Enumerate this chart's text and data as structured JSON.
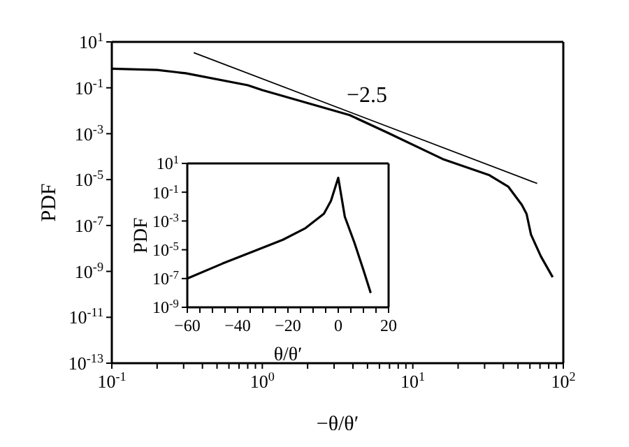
{
  "chart_data": [
    {
      "type": "line",
      "xlabel": "−θ/θ′",
      "ylabel": "PDF",
      "log": "xy",
      "marker": "none",
      "line_style": "solid",
      "xlim": [
        0.1,
        100
      ],
      "ylim": [
        1e-13,
        10
      ],
      "xticks": [
        {
          "value": 0.1,
          "label": "10$^{-1}$"
        },
        {
          "value": 0.2,
          "label": null
        },
        {
          "value": 0.3,
          "label": null
        },
        {
          "value": 0.4,
          "label": null
        },
        {
          "value": 0.5,
          "label": null
        },
        {
          "value": 0.6,
          "label": null
        },
        {
          "value": 0.7,
          "label": null
        },
        {
          "value": 0.8,
          "label": null
        },
        {
          "value": 0.9,
          "label": null
        },
        {
          "value": 1,
          "label": "10$^{0}$"
        },
        {
          "value": 2,
          "label": null
        },
        {
          "value": 3,
          "label": null
        },
        {
          "value": 4,
          "label": null
        },
        {
          "value": 5,
          "label": null
        },
        {
          "value": 6,
          "label": null
        },
        {
          "value": 7,
          "label": null
        },
        {
          "value": 8,
          "label": null
        },
        {
          "value": 9,
          "label": null
        },
        {
          "value": 10,
          "label": "10$^{1}$"
        },
        {
          "value": 20,
          "label": null
        },
        {
          "value": 30,
          "label": null
        },
        {
          "value": 40,
          "label": null
        },
        {
          "value": 50,
          "label": null
        },
        {
          "value": 60,
          "label": null
        },
        {
          "value": 70,
          "label": null
        },
        {
          "value": 80,
          "label": null
        },
        {
          "value": 90,
          "label": null
        },
        {
          "value": 100,
          "label": "10$^{2}$"
        }
      ],
      "yticks": [
        {
          "value": 1e-13,
          "label": "10$^{-13}$"
        },
        {
          "value": 1e-11,
          "label": "10$^{-11}$"
        },
        {
          "value": 1e-09,
          "label": "10$^{-9}$"
        },
        {
          "value": 1e-07,
          "label": "10$^{-7}$"
        },
        {
          "value": 1e-05,
          "label": "10$^{-5}$"
        },
        {
          "value": 0.001,
          "label": "10$^{-3}$"
        },
        {
          "value": 0.1,
          "label": "10$^{-1}$"
        },
        {
          "value": 10,
          "label": "10$^{1}$"
        }
      ],
      "series": [
        {
          "color": "#000000",
          "x": [
            0.1,
            0.2,
            0.31,
            0.8,
            1.0,
            3.8,
            6.8,
            15.8,
            32,
            43,
            53,
            57,
            61,
            71,
            85
          ],
          "values": [
            0.68,
            0.6,
            0.43,
            0.13,
            0.079,
            0.0065,
            0.0011,
            7.9e-05,
            1.6e-05,
            5e-06,
            8e-07,
            3.2e-07,
            4e-08,
            4.5e-09,
            5.6e-10
          ]
        },
        {
          "color": "#000000",
          "x": [
            0.35,
            67
          ],
          "values": [
            3.4,
            6.8e-06
          ]
        }
      ],
      "annotations": [
        "−2.5"
      ]
    },
    {
      "type": "line",
      "xlabel": "θ/θ′",
      "ylabel": "PDF",
      "log": "y",
      "marker": "none",
      "line_style": "solid",
      "xlim": [
        -60,
        20
      ],
      "ylim": [
        1e-09,
        10
      ],
      "xticks": [
        -60,
        {
          "value": -55,
          "label": null
        },
        {
          "value": -50,
          "label": null
        },
        {
          "value": -45,
          "label": null
        },
        -40,
        {
          "value": -35,
          "label": null
        },
        {
          "value": -30,
          "label": null
        },
        {
          "value": -25,
          "label": null
        },
        -20,
        {
          "value": -15,
          "label": null
        },
        {
          "value": -10,
          "label": null
        },
        {
          "value": -5,
          "label": null
        },
        0,
        {
          "value": 5,
          "label": null
        },
        {
          "value": 10,
          "label": null
        },
        {
          "value": 15,
          "label": null
        },
        20
      ],
      "yticks": [
        {
          "value": 1e-09,
          "label": "10$^{-9}$"
        },
        {
          "value": 1e-07,
          "label": "10$^{-7}$"
        },
        {
          "value": 1e-05,
          "label": "10$^{-5}$"
        },
        {
          "value": 0.001,
          "label": "10$^{-3}$"
        },
        {
          "value": 0.1,
          "label": "10$^{-1}$"
        },
        {
          "value": 10,
          "label": "10$^{1}$"
        }
      ],
      "series": [
        {
          "color": "#000000",
          "x": [
            -60,
            -46,
            -31.5,
            -22,
            -13,
            -5.7,
            -2.9,
            0,
            2.6,
            6.4,
            10,
            12.9
          ],
          "values": [
            1e-07,
            1.1e-06,
            1.1e-05,
            5e-05,
            0.00032,
            0.0032,
            0.025,
            1.0,
            0.002,
            3.2e-05,
            4e-07,
            1e-08
          ]
        }
      ]
    }
  ]
}
